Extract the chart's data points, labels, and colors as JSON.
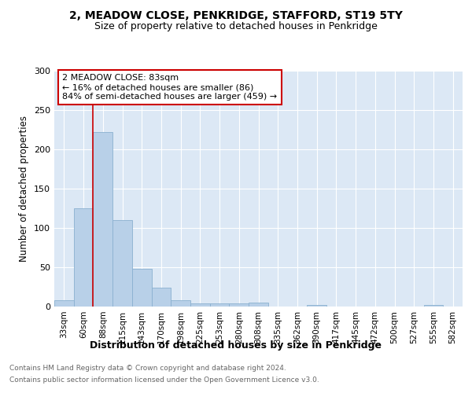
{
  "title": "2, MEADOW CLOSE, PENKRIDGE, STAFFORD, ST19 5TY",
  "subtitle": "Size of property relative to detached houses in Penkridge",
  "xlabel": "Distribution of detached houses by size in Penkridge",
  "ylabel": "Number of detached properties",
  "bar_labels": [
    "33sqm",
    "60sqm",
    "88sqm",
    "115sqm",
    "143sqm",
    "170sqm",
    "198sqm",
    "225sqm",
    "253sqm",
    "280sqm",
    "308sqm",
    "335sqm",
    "362sqm",
    "390sqm",
    "417sqm",
    "445sqm",
    "472sqm",
    "500sqm",
    "527sqm",
    "555sqm",
    "582sqm"
  ],
  "bar_values": [
    8,
    125,
    222,
    110,
    48,
    24,
    8,
    4,
    4,
    4,
    5,
    0,
    0,
    2,
    0,
    0,
    0,
    0,
    0,
    2,
    0
  ],
  "bar_color": "#b8d0e8",
  "bar_edge_color": "#8ab0d0",
  "property_line_label": "2 MEADOW CLOSE: 83sqm",
  "annotation_line1": "← 16% of detached houses are smaller (86)",
  "annotation_line2": "84% of semi-detached houses are larger (459) →",
  "property_line_color": "#cc0000",
  "property_line_index": 2,
  "ylim": [
    0,
    300
  ],
  "yticks": [
    0,
    50,
    100,
    150,
    200,
    250,
    300
  ],
  "plot_bg_color": "#dce8f5",
  "footer_line1": "Contains HM Land Registry data © Crown copyright and database right 2024.",
  "footer_line2": "Contains public sector information licensed under the Open Government Licence v3.0."
}
